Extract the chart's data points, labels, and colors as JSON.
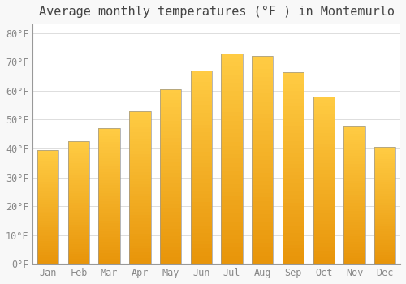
{
  "title": "Average monthly temperatures (°F ) in Montemurlo",
  "months": [
    "Jan",
    "Feb",
    "Mar",
    "Apr",
    "May",
    "Jun",
    "Jul",
    "Aug",
    "Sep",
    "Oct",
    "Nov",
    "Dec"
  ],
  "values": [
    39.5,
    42.5,
    47.0,
    53.0,
    60.5,
    67.0,
    73.0,
    72.0,
    66.5,
    58.0,
    48.0,
    40.5
  ],
  "bar_color": "#F5A800",
  "bar_edge_color": "#999999",
  "background_color": "#F8F8F8",
  "plot_bg_color": "#FFFFFF",
  "grid_color": "#DDDDDD",
  "ylim": [
    0,
    83
  ],
  "yticks": [
    0,
    10,
    20,
    30,
    40,
    50,
    60,
    70,
    80
  ],
  "title_fontsize": 11,
  "tick_fontsize": 8.5,
  "font_family": "monospace"
}
